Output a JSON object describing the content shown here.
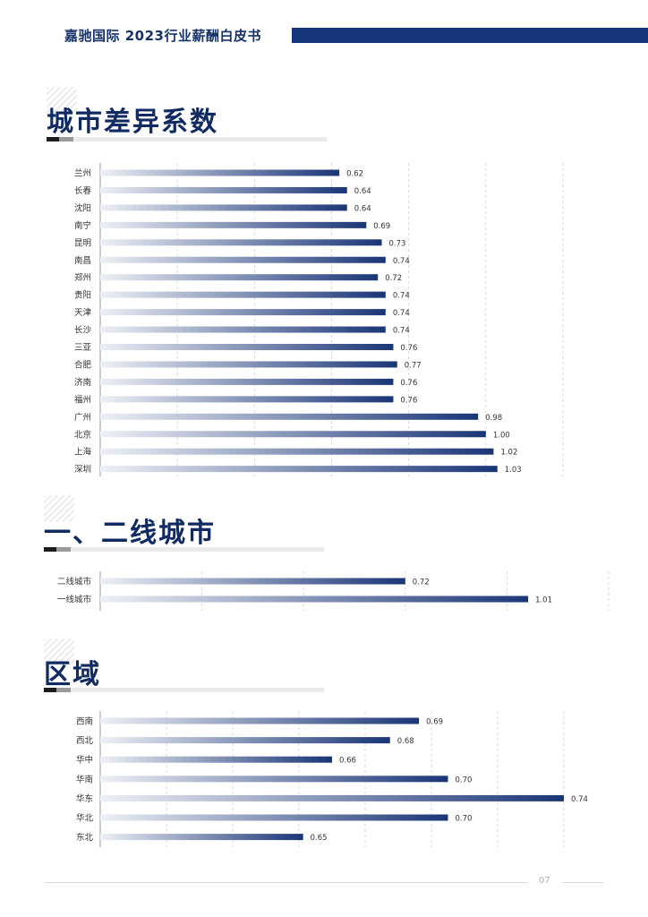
{
  "header": {
    "title": "嘉驰国际  2023行业薪酬白皮书"
  },
  "sections": [
    {
      "title": "城市差异系数"
    },
    {
      "title": "一、二线城市"
    },
    {
      "title": "区域"
    }
  ],
  "page_number": "07",
  "colors": {
    "bar_start": "#eef0f5",
    "bar_end": "#1a3577",
    "header_bar": "#16357a",
    "title": "#102a63"
  },
  "chart_data": [
    {
      "type": "bar",
      "orientation": "horizontal",
      "categories": [
        "兰州",
        "长春",
        "沈阳",
        "南宁",
        "昆明",
        "南昌",
        "郑州",
        "贵阳",
        "天津",
        "长沙",
        "三亚",
        "合肥",
        "济南",
        "福州",
        "广州",
        "北京",
        "上海",
        "深圳"
      ],
      "values": [
        0.62,
        0.64,
        0.64,
        0.69,
        0.73,
        0.74,
        0.72,
        0.74,
        0.74,
        0.74,
        0.76,
        0.77,
        0.76,
        0.76,
        0.98,
        1.0,
        1.02,
        1.03
      ],
      "labels": [
        "0.62",
        "0.64",
        "0.64",
        "0.69",
        "0.73",
        "0.74",
        "0.72",
        "0.74",
        "0.74",
        "0.74",
        "0.76",
        "0.77",
        "0.76",
        "0.76",
        "0.98",
        "1.00",
        "1.02",
        "1.03"
      ],
      "xlim": [
        0,
        1.2
      ],
      "grid": true
    },
    {
      "type": "bar",
      "orientation": "horizontal",
      "categories": [
        "二线城市",
        "一线城市"
      ],
      "values": [
        0.72,
        1.01
      ],
      "labels": [
        "0.72",
        "1.01"
      ],
      "xlim": [
        0,
        1.2
      ],
      "grid": true
    },
    {
      "type": "bar",
      "orientation": "horizontal",
      "categories": [
        "西南",
        "西北",
        "华中",
        "华南",
        "华东",
        "华北",
        "东北"
      ],
      "values": [
        0.69,
        0.68,
        0.66,
        0.7,
        0.74,
        0.7,
        0.65
      ],
      "labels": [
        "0.69",
        "0.68",
        "0.66",
        "0.70",
        "0.74",
        "0.70",
        "0.65"
      ],
      "xlim": [
        0.58,
        0.74
      ],
      "grid": true
    }
  ]
}
